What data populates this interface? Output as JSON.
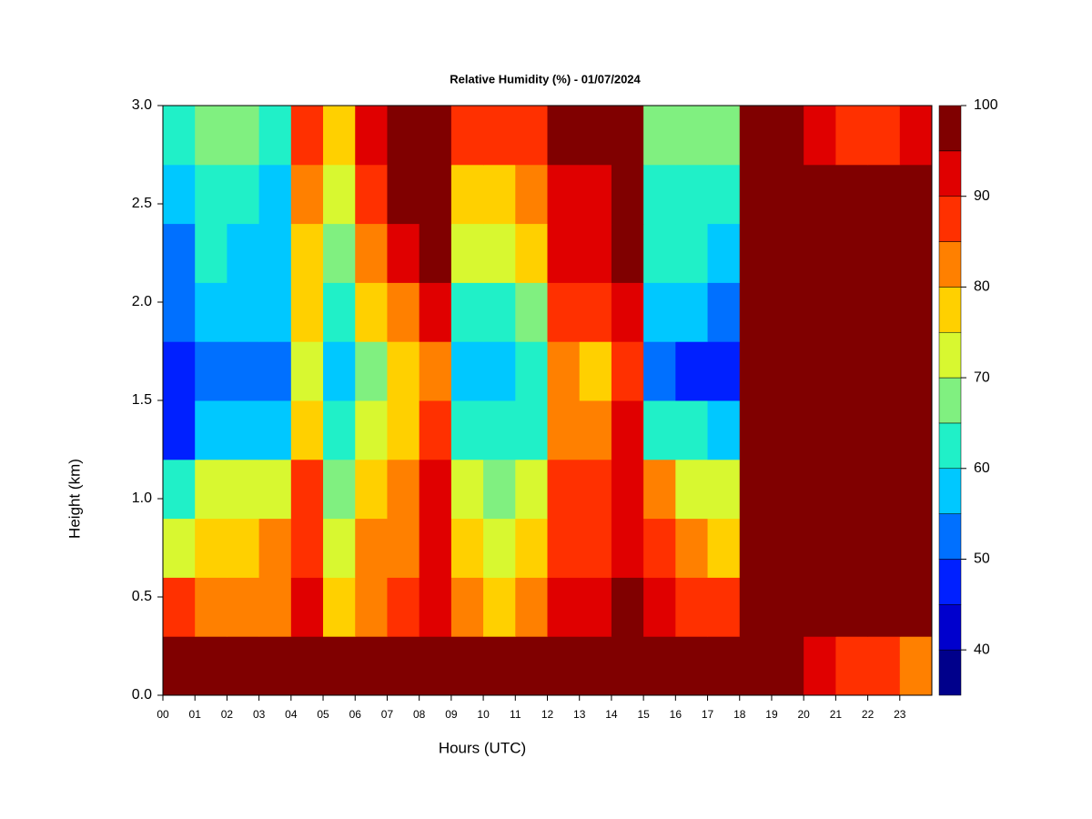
{
  "chart_data": {
    "type": "heatmap",
    "title": "Relative Humidity (%) - 01/07/2024",
    "x_label": "Hours (UTC)",
    "y_label": "Height (km)",
    "x": [
      0.5,
      1.5,
      2.5,
      3.5,
      4.5,
      5.5,
      6.5,
      7.5,
      8.5,
      9.5,
      10.5,
      11.5,
      12.5,
      13.5,
      14.5,
      15.5,
      16.5,
      17.5,
      18.5,
      19.5,
      20.5,
      21.5,
      22.5,
      23.5
    ],
    "y": [
      0.15,
      0.45,
      0.75,
      1.05,
      1.35,
      1.65,
      1.95,
      2.25,
      2.55,
      2.85
    ],
    "z": [
      [
        98,
        98,
        98,
        98,
        98,
        98,
        98,
        98,
        98,
        98,
        98,
        98,
        98,
        98,
        98,
        98,
        98,
        98,
        98,
        97,
        93,
        88,
        88,
        85
      ],
      [
        90,
        85,
        82,
        85,
        92,
        80,
        85,
        88,
        95,
        82,
        78,
        82,
        92,
        95,
        96,
        92,
        88,
        88,
        98,
        98,
        98,
        98,
        98,
        98
      ],
      [
        75,
        80,
        80,
        82,
        90,
        75,
        82,
        85,
        92,
        78,
        75,
        80,
        90,
        90,
        95,
        88,
        82,
        80,
        98,
        98,
        98,
        98,
        98,
        98
      ],
      [
        62,
        75,
        72,
        75,
        88,
        70,
        80,
        85,
        92,
        72,
        68,
        72,
        88,
        88,
        95,
        82,
        75,
        72,
        98,
        98,
        98,
        98,
        98,
        98
      ],
      [
        50,
        60,
        58,
        58,
        80,
        62,
        72,
        80,
        90,
        62,
        62,
        65,
        85,
        85,
        92,
        65,
        62,
        60,
        98,
        98,
        98,
        98,
        98,
        98
      ],
      [
        48,
        55,
        52,
        52,
        75,
        58,
        70,
        78,
        85,
        60,
        60,
        62,
        82,
        80,
        88,
        55,
        50,
        48,
        98,
        98,
        98,
        98,
        98,
        98
      ],
      [
        55,
        60,
        60,
        58,
        78,
        62,
        78,
        85,
        92,
        65,
        65,
        70,
        88,
        88,
        95,
        60,
        58,
        55,
        98,
        98,
        98,
        98,
        98,
        98
      ],
      [
        52,
        62,
        58,
        58,
        80,
        70,
        85,
        92,
        96,
        72,
        72,
        78,
        92,
        92,
        97,
        62,
        62,
        60,
        98,
        98,
        98,
        98,
        98,
        98
      ],
      [
        60,
        65,
        62,
        60,
        85,
        75,
        90,
        96,
        98,
        80,
        80,
        85,
        95,
        95,
        98,
        65,
        65,
        62,
        98,
        98,
        98,
        98,
        98,
        98
      ],
      [
        65,
        70,
        68,
        65,
        90,
        80,
        95,
        97,
        98,
        88,
        88,
        90,
        97,
        96,
        98,
        68,
        70,
        68,
        98,
        98,
        92,
        88,
        90,
        94
      ]
    ],
    "xlim": [
      0,
      24
    ],
    "ylim": [
      0,
      3
    ],
    "xticks": [
      {
        "value": 0,
        "label": "00"
      },
      {
        "value": 1,
        "label": "01"
      },
      {
        "value": 2,
        "label": "02"
      },
      {
        "value": 3,
        "label": "03"
      },
      {
        "value": 4,
        "label": "04"
      },
      {
        "value": 5,
        "label": "05"
      },
      {
        "value": 6,
        "label": "06"
      },
      {
        "value": 7,
        "label": "07"
      },
      {
        "value": 8,
        "label": "08"
      },
      {
        "value": 9,
        "label": "09"
      },
      10,
      11,
      12,
      13,
      14,
      15,
      16,
      17,
      18,
      19,
      20,
      21,
      22,
      23
    ],
    "yticks": [
      {
        "value": 0,
        "label": "0.0"
      },
      0.5,
      {
        "value": 1,
        "label": "1.0"
      },
      1.5,
      {
        "value": 2,
        "label": "2.0"
      },
      2.5,
      {
        "value": 3,
        "label": "3.0"
      }
    ],
    "colorbar": {
      "levels": [
        35,
        40,
        45,
        50,
        55,
        60,
        65,
        70,
        75,
        80,
        85,
        90,
        95,
        100
      ],
      "colors": [
        "#00008b",
        "#0000cd",
        "#0020ff",
        "#0070ff",
        "#00c8ff",
        "#20f0c8",
        "#80f080",
        "#d8f830",
        "#ffd000",
        "#ff8000",
        "#ff3000",
        "#e00000",
        "#800000"
      ],
      "ticks": [
        40,
        50,
        60,
        70,
        80,
        90,
        100
      ]
    }
  }
}
